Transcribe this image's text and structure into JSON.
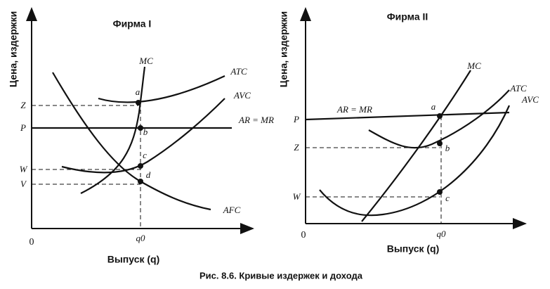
{
  "panels": [
    {
      "title": "Фирма I",
      "y_axis_label": "Цена, издержки",
      "x_axis_label": "Выпуск (q)",
      "origin": "0",
      "quantity_label": "q0",
      "price_labels": [
        "Z",
        "P",
        "W",
        "V"
      ],
      "curve_labels": [
        "MC",
        "ATC",
        "AVC",
        "AR = MR",
        "AFC"
      ],
      "point_labels": [
        "a",
        "b",
        "c",
        "d"
      ]
    },
    {
      "title": "Фирма II",
      "y_axis_label": "Цена, издержки",
      "x_axis_label": "Выпуск (q)",
      "origin": "0",
      "quantity_label": "q0",
      "price_labels": [
        "P",
        "Z",
        "W"
      ],
      "curve_labels": [
        "MC",
        "ATC",
        "AVC",
        "AR = MR"
      ],
      "point_labels": [
        "a",
        "b",
        "c"
      ]
    }
  ],
  "caption": "Рис. 8.6. Кривые издержек и дохода"
}
